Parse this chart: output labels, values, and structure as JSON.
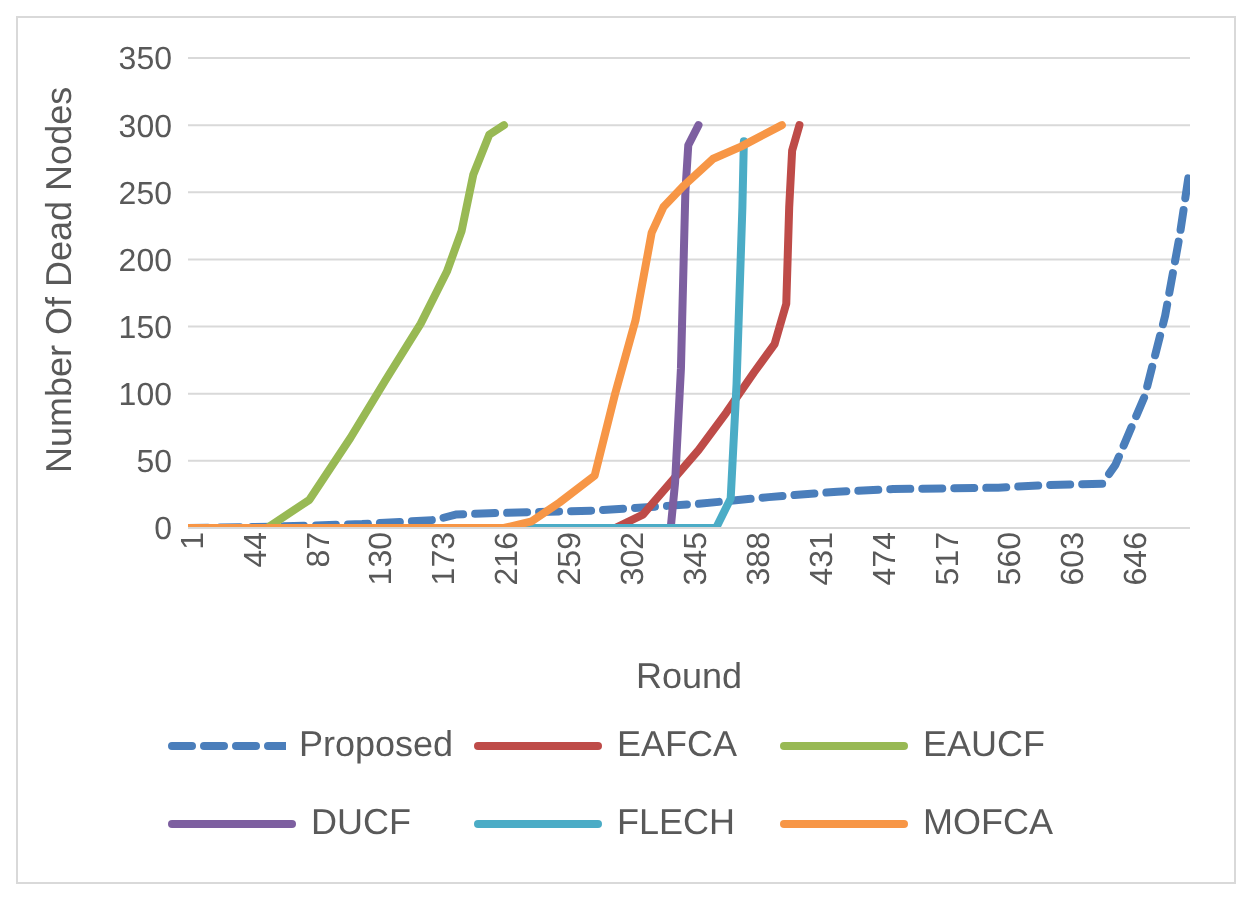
{
  "chart_data": {
    "type": "line",
    "xlabel": "Round",
    "ylabel": "Number Of Dead Nodes",
    "xlim": [
      1,
      686
    ],
    "xticks": [
      1,
      44,
      87,
      130,
      173,
      216,
      259,
      302,
      345,
      388,
      431,
      474,
      517,
      560,
      603,
      646
    ],
    "ylim": [
      0,
      350
    ],
    "yticks": [
      0,
      50,
      100,
      150,
      200,
      250,
      300,
      350
    ],
    "grid": "y",
    "legend": "bottom",
    "series": [
      {
        "name": "Proposed",
        "color": "#4a7ebb",
        "line_style": "dashed",
        "x": [
          1,
          60,
          120,
          170,
          184,
          207,
          279,
          350,
          398,
          445,
          483,
          555,
          588,
          626,
          635,
          655,
          669,
          679,
          686
        ],
        "values": [
          0,
          1,
          3,
          6,
          10,
          11,
          13,
          18,
          23,
          27,
          29,
          30,
          32,
          33,
          47,
          98,
          158,
          218,
          269
        ]
      },
      {
        "name": "EAFCA",
        "color": "#be4b48",
        "x": [
          1,
          293,
          312,
          331,
          350,
          369,
          388,
          402,
          410,
          412,
          414,
          419
        ],
        "values": [
          0,
          0,
          10,
          34,
          58,
          86,
          116,
          137,
          167,
          239,
          281,
          300
        ]
      },
      {
        "name": "EAUCF",
        "color": "#98b954",
        "x": [
          1,
          55,
          84,
          112,
          136,
          160,
          178,
          188,
          196,
          207,
          217
        ],
        "values": [
          0,
          0,
          21,
          67,
          110,
          152,
          191,
          221,
          263,
          293,
          300
        ]
      },
      {
        "name": "DUCF",
        "color": "#7d5fa0",
        "x": [
          331,
          334,
          338,
          341,
          343,
          350
        ],
        "values": [
          0,
          34,
          119,
          250,
          285,
          300
        ]
      },
      {
        "name": "FLECH",
        "color": "#4bacc6",
        "x": [
          1,
          362,
          372,
          376,
          380,
          381
        ],
        "values": [
          0,
          0,
          22,
          107,
          239,
          288
        ]
      },
      {
        "name": "MOFCA",
        "color": "#f79646",
        "x": [
          1,
          217,
          236,
          255,
          279,
          293,
          307,
          318,
          326,
          340,
          360,
          379,
          407
        ],
        "values": [
          0,
          0,
          5,
          19,
          39,
          100,
          155,
          220,
          239,
          255,
          275,
          284,
          300
        ]
      }
    ]
  }
}
